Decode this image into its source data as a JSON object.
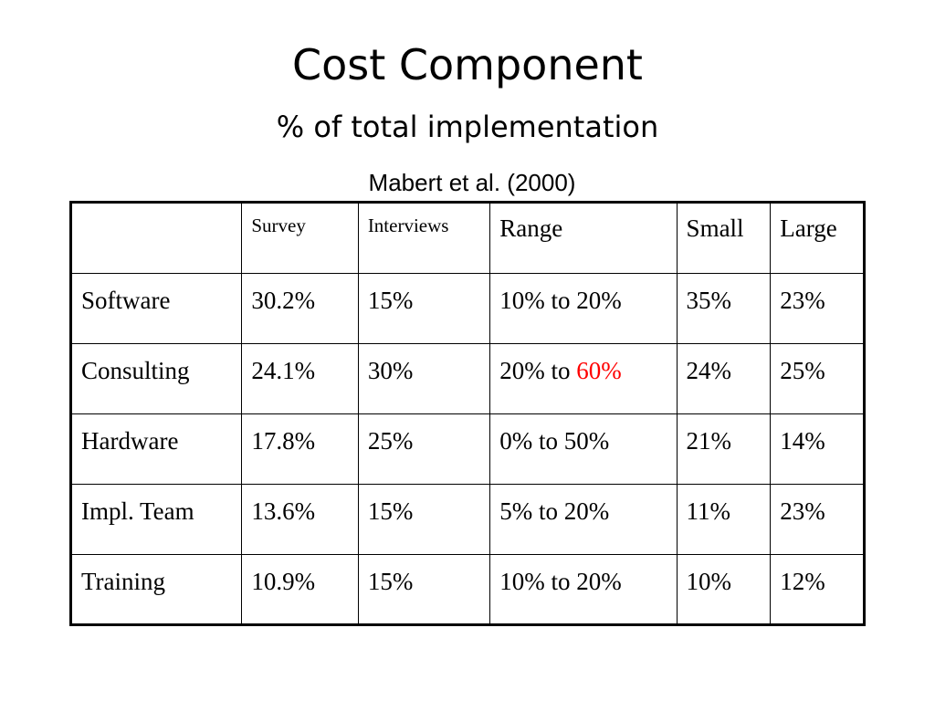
{
  "slide": {
    "title": "Cost Component",
    "subtitle": "% of total implementation",
    "source": "Mabert et al. (2000)"
  },
  "table": {
    "headers": [
      "",
      "Survey",
      "Interviews",
      "Range",
      "Small",
      "Large"
    ],
    "rows": [
      {
        "label": "Software",
        "survey": "30.2%",
        "interviews": "15%",
        "range": "10% to 20%",
        "small": "35%",
        "large": "23%"
      },
      {
        "label": "Consulting",
        "survey": "24.1%",
        "interviews": "30%",
        "range_prefix": "20% to ",
        "range_highlight": "60%",
        "small": "24%",
        "large": "25%"
      },
      {
        "label": "Hardware",
        "survey": "17.8%",
        "interviews": "25%",
        "range": "0% to 50%",
        "small": "21%",
        "large": "14%"
      },
      {
        "label": "Impl. Team",
        "survey": "13.6%",
        "interviews": "15%",
        "range": "5% to 20%",
        "small": "11%",
        "large": "23%"
      },
      {
        "label": "Training",
        "survey": "10.9%",
        "interviews": "15%",
        "range": "10% to 20%",
        "small": "10%",
        "large": "12%"
      }
    ]
  },
  "colors": {
    "highlight_red": "#ff0000",
    "muted_red": "#c0392b",
    "highlight_green": "#00a000",
    "text": "#000000",
    "background": "#ffffff"
  }
}
